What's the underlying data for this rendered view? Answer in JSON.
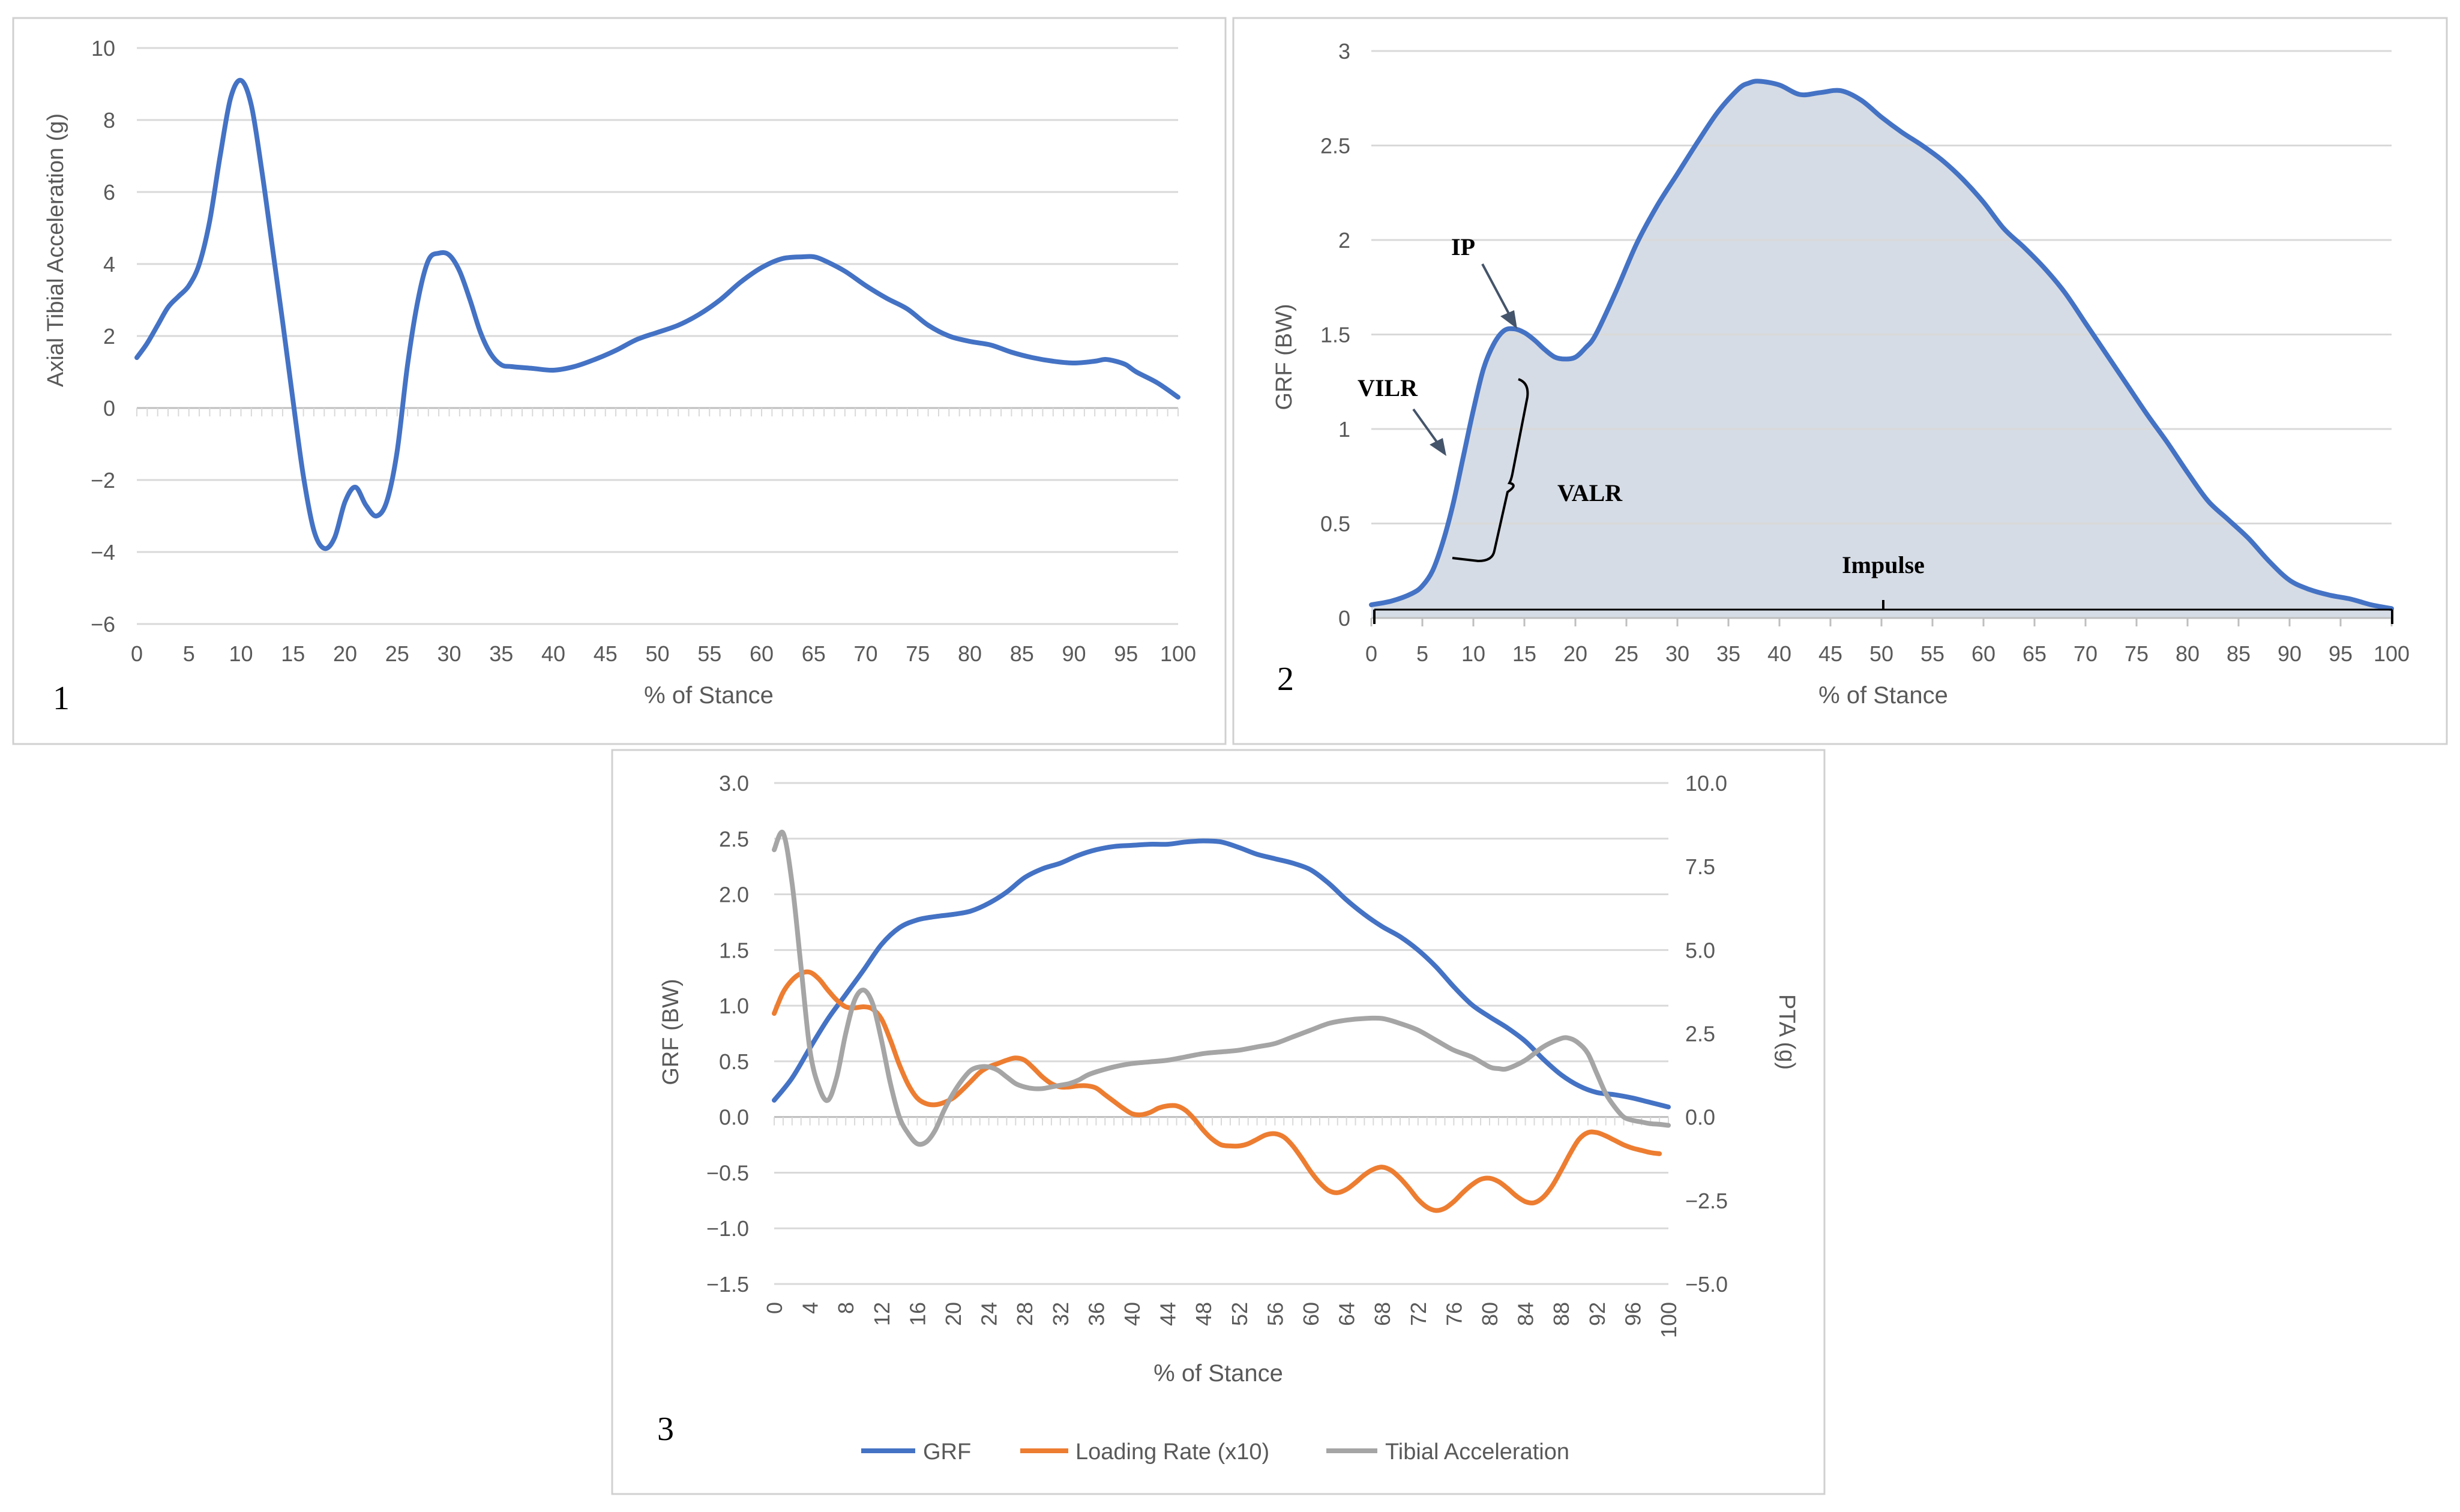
{
  "colors": {
    "grf": "#4472C4",
    "loading_rate": "#ED7D31",
    "tibial_acc": "#A5A5A5",
    "area_fill": "#D6DCE5",
    "grid": "#D9D9D9",
    "axis": "#BFBFBF",
    "panel_border": "#D0D0D0",
    "text": "#595959",
    "annotation": "#000000",
    "arrow": "#44546A"
  },
  "chart_data": [
    {
      "panel_label": "1",
      "type": "line",
      "title": "",
      "xlabel": "% of Stance",
      "ylabel": "Axial Tibial Acceleration (g)",
      "xlim": [
        0,
        100
      ],
      "ylim": [
        -6,
        10
      ],
      "x_ticks": [
        "0",
        "5",
        "10",
        "15",
        "20",
        "25",
        "30",
        "35",
        "40",
        "45",
        "50",
        "55",
        "60",
        "65",
        "70",
        "75",
        "80",
        "85",
        "90",
        "95",
        "100"
      ],
      "y_ticks": [
        "10",
        "8",
        "6",
        "4",
        "2",
        "0",
        "−2",
        "−4",
        "−6"
      ],
      "y_tick_values": [
        10,
        8,
        6,
        4,
        2,
        0,
        -2,
        -4,
        -6
      ],
      "grid": true,
      "series": [
        {
          "name": "Axial Tibial Acceleration",
          "color": "#4472C4",
          "x": [
            0,
            1,
            2,
            3,
            4,
            5,
            6,
            7,
            8,
            9,
            10,
            11,
            12,
            13,
            14,
            15,
            16,
            17,
            18,
            19,
            20,
            21,
            22,
            23,
            24,
            25,
            26,
            27,
            28,
            29,
            30,
            31,
            32,
            33,
            34,
            35,
            36,
            38,
            40,
            42,
            44,
            46,
            48,
            50,
            52,
            54,
            56,
            58,
            60,
            62,
            64,
            65,
            66,
            68,
            70,
            72,
            74,
            76,
            78,
            80,
            82,
            84,
            86,
            88,
            90,
            92,
            93,
            94,
            95,
            96,
            98,
            100
          ],
          "values": [
            1.4,
            1.8,
            2.3,
            2.8,
            3.1,
            3.4,
            4.0,
            5.2,
            7.0,
            8.6,
            9.1,
            8.4,
            6.6,
            4.5,
            2.4,
            0.2,
            -1.9,
            -3.4,
            -3.9,
            -3.6,
            -2.6,
            -2.2,
            -2.7,
            -3.0,
            -2.6,
            -1.2,
            1.2,
            3.0,
            4.1,
            4.3,
            4.25,
            3.8,
            3.0,
            2.1,
            1.5,
            1.2,
            1.15,
            1.1,
            1.05,
            1.15,
            1.35,
            1.6,
            1.9,
            2.1,
            2.3,
            2.6,
            3.0,
            3.5,
            3.9,
            4.15,
            4.2,
            4.2,
            4.1,
            3.8,
            3.4,
            3.05,
            2.75,
            2.3,
            2.0,
            1.85,
            1.75,
            1.55,
            1.4,
            1.3,
            1.25,
            1.3,
            1.35,
            1.3,
            1.2,
            1.0,
            0.7,
            0.3
          ]
        }
      ]
    },
    {
      "panel_label": "2",
      "type": "area",
      "title": "",
      "xlabel": "% of Stance",
      "ylabel": "GRF (BW)",
      "xlim": [
        0,
        100
      ],
      "ylim": [
        0,
        3
      ],
      "x_ticks": [
        "0",
        "5",
        "10",
        "15",
        "20",
        "25",
        "30",
        "35",
        "40",
        "45",
        "50",
        "55",
        "60",
        "65",
        "70",
        "75",
        "80",
        "85",
        "90",
        "95",
        "100"
      ],
      "y_ticks": [
        "3",
        "2.5",
        "2",
        "1.5",
        "1",
        "0.5",
        "0"
      ],
      "y_tick_values": [
        3,
        2.5,
        2,
        1.5,
        1,
        0.5,
        0
      ],
      "grid": true,
      "annotations": [
        "IP",
        "VILR",
        "VALR",
        "Impulse"
      ],
      "series": [
        {
          "name": "GRF",
          "color": "#4472C4",
          "x": [
            0,
            2,
            4,
            5,
            6,
            7,
            8,
            9,
            10,
            11,
            12,
            13,
            14,
            15,
            16,
            17,
            18,
            19,
            20,
            21,
            22,
            24,
            26,
            28,
            30,
            32,
            34,
            36,
            37,
            38,
            40,
            42,
            44,
            46,
            48,
            50,
            52,
            54,
            56,
            58,
            60,
            62,
            64,
            66,
            68,
            70,
            72,
            74,
            76,
            78,
            80,
            82,
            84,
            86,
            88,
            90,
            92,
            94,
            96,
            98,
            100
          ],
          "values": [
            0.07,
            0.09,
            0.13,
            0.17,
            0.25,
            0.4,
            0.6,
            0.85,
            1.1,
            1.32,
            1.45,
            1.52,
            1.53,
            1.51,
            1.47,
            1.42,
            1.38,
            1.37,
            1.38,
            1.43,
            1.5,
            1.73,
            1.98,
            2.18,
            2.35,
            2.52,
            2.68,
            2.8,
            2.83,
            2.84,
            2.82,
            2.77,
            2.78,
            2.79,
            2.74,
            2.65,
            2.57,
            2.5,
            2.42,
            2.32,
            2.2,
            2.06,
            1.96,
            1.85,
            1.72,
            1.56,
            1.4,
            1.24,
            1.08,
            0.93,
            0.77,
            0.62,
            0.52,
            0.42,
            0.3,
            0.2,
            0.15,
            0.12,
            0.1,
            0.07,
            0.05
          ]
        }
      ]
    },
    {
      "panel_label": "3",
      "type": "line",
      "title": "",
      "xlabel": "% of Stance",
      "ylabel": "GRF (BW)",
      "ylabel_right": "PTA (g)",
      "xlim": [
        0,
        100
      ],
      "ylim": [
        -1.5,
        3.0
      ],
      "ylim_right": [
        -5.0,
        10.0
      ],
      "x_ticks": [
        "0",
        "4",
        "8",
        "12",
        "16",
        "20",
        "24",
        "28",
        "32",
        "36",
        "40",
        "44",
        "48",
        "52",
        "56",
        "60",
        "64",
        "68",
        "72",
        "76",
        "80",
        "84",
        "88",
        "92",
        "96",
        "100"
      ],
      "y_ticks": [
        "3.0",
        "2.5",
        "2.0",
        "1.5",
        "1.0",
        "0.5",
        "0.0",
        "−0.5",
        "−1.0",
        "−1.5"
      ],
      "y_tick_values": [
        3.0,
        2.5,
        2.0,
        1.5,
        1.0,
        0.5,
        0.0,
        -0.5,
        -1.0,
        -1.5
      ],
      "y_ticks_right": [
        "10.0",
        "7.5",
        "5.0",
        "2.5",
        "0.0",
        "−2.5",
        "−5.0"
      ],
      "y_tick_values_right": [
        10.0,
        7.5,
        5.0,
        2.5,
        0.0,
        -2.5,
        -5.0
      ],
      "grid": true,
      "legend_position": "bottom",
      "series": [
        {
          "name": "GRF",
          "color": "#4472C4",
          "axis": "left",
          "x": [
            0,
            2,
            4,
            6,
            8,
            10,
            12,
            14,
            16,
            18,
            20,
            22,
            24,
            26,
            28,
            30,
            32,
            34,
            36,
            38,
            40,
            42,
            44,
            46,
            48,
            50,
            52,
            54,
            56,
            58,
            60,
            62,
            64,
            66,
            68,
            70,
            72,
            74,
            76,
            78,
            80,
            82,
            84,
            86,
            88,
            90,
            92,
            94,
            96,
            98,
            100
          ],
          "values": [
            0.15,
            0.35,
            0.62,
            0.88,
            1.1,
            1.32,
            1.55,
            1.7,
            1.77,
            1.8,
            1.82,
            1.85,
            1.92,
            2.02,
            2.15,
            2.23,
            2.28,
            2.35,
            2.4,
            2.43,
            2.44,
            2.45,
            2.45,
            2.47,
            2.48,
            2.47,
            2.42,
            2.36,
            2.32,
            2.28,
            2.22,
            2.1,
            1.95,
            1.82,
            1.71,
            1.62,
            1.5,
            1.35,
            1.17,
            1.01,
            0.9,
            0.8,
            0.68,
            0.52,
            0.38,
            0.28,
            0.22,
            0.2,
            0.17,
            0.13,
            0.09
          ]
        },
        {
          "name": "Loading Rate (x10)",
          "color": "#ED7D31",
          "axis": "left",
          "x": [
            0,
            1,
            2,
            3,
            4,
            5,
            6,
            7,
            8,
            9,
            10,
            11,
            12,
            13,
            14,
            15,
            16,
            17,
            18,
            19,
            20,
            21,
            22,
            23,
            24,
            25,
            26,
            27,
            28,
            29,
            30,
            31,
            32,
            33,
            34,
            35,
            36,
            37,
            38,
            39,
            40,
            41,
            42,
            43,
            44,
            45,
            46,
            47,
            48,
            49,
            50,
            51,
            52,
            53,
            54,
            55,
            56,
            57,
            58,
            59,
            60,
            61,
            62,
            63,
            64,
            65,
            66,
            67,
            68,
            69,
            70,
            71,
            72,
            73,
            74,
            75,
            76,
            77,
            78,
            79,
            80,
            81,
            82,
            83,
            84,
            85,
            86,
            87,
            88,
            89,
            90,
            91,
            92,
            93,
            94,
            95,
            96,
            97,
            98,
            99
          ],
          "values": [
            0.93,
            1.12,
            1.23,
            1.29,
            1.3,
            1.24,
            1.14,
            1.05,
            0.99,
            0.98,
            0.99,
            0.97,
            0.88,
            0.69,
            0.47,
            0.29,
            0.17,
            0.12,
            0.11,
            0.13,
            0.17,
            0.24,
            0.32,
            0.4,
            0.45,
            0.48,
            0.51,
            0.53,
            0.51,
            0.44,
            0.36,
            0.3,
            0.27,
            0.27,
            0.28,
            0.28,
            0.26,
            0.2,
            0.14,
            0.08,
            0.03,
            0.02,
            0.04,
            0.08,
            0.1,
            0.1,
            0.06,
            -0.02,
            -0.12,
            -0.2,
            -0.25,
            -0.26,
            -0.26,
            -0.24,
            -0.2,
            -0.16,
            -0.15,
            -0.18,
            -0.26,
            -0.37,
            -0.49,
            -0.59,
            -0.66,
            -0.68,
            -0.65,
            -0.59,
            -0.52,
            -0.47,
            -0.45,
            -0.48,
            -0.55,
            -0.64,
            -0.74,
            -0.81,
            -0.84,
            -0.82,
            -0.76,
            -0.68,
            -0.61,
            -0.56,
            -0.55,
            -0.58,
            -0.64,
            -0.71,
            -0.76,
            -0.77,
            -0.72,
            -0.62,
            -0.48,
            -0.33,
            -0.2,
            -0.14,
            -0.14,
            -0.17,
            -0.21,
            -0.25,
            -0.28,
            -0.3,
            -0.32,
            -0.33
          ]
        },
        {
          "name": "Tibial Acceleration",
          "color": "#A5A5A5",
          "axis": "right",
          "x": [
            0,
            1,
            2,
            3,
            4,
            5,
            6,
            7,
            8,
            9,
            10,
            11,
            12,
            13,
            14,
            15,
            16,
            17,
            18,
            19,
            20,
            21,
            22,
            23,
            24,
            25,
            26,
            27,
            28,
            29,
            30,
            31,
            32,
            33,
            34,
            35,
            36,
            38,
            40,
            42,
            44,
            46,
            48,
            50,
            52,
            54,
            56,
            58,
            60,
            62,
            64,
            66,
            68,
            70,
            72,
            74,
            76,
            78,
            80,
            81,
            82,
            84,
            86,
            88,
            89,
            90,
            91,
            92,
            93,
            94,
            95,
            96,
            97,
            98,
            99,
            100
          ],
          "values": [
            8.0,
            8.5,
            7.0,
            4.5,
            2.0,
            0.9,
            0.5,
            1.2,
            2.5,
            3.5,
            3.8,
            3.4,
            2.3,
            1.0,
            0.0,
            -0.5,
            -0.8,
            -0.75,
            -0.4,
            0.2,
            0.7,
            1.1,
            1.4,
            1.5,
            1.5,
            1.4,
            1.2,
            1.0,
            0.9,
            0.85,
            0.85,
            0.9,
            0.95,
            1.0,
            1.1,
            1.25,
            1.35,
            1.5,
            1.6,
            1.65,
            1.7,
            1.8,
            1.9,
            1.95,
            2.0,
            2.1,
            2.2,
            2.4,
            2.6,
            2.8,
            2.9,
            2.95,
            2.95,
            2.8,
            2.6,
            2.3,
            2.0,
            1.8,
            1.5,
            1.45,
            1.45,
            1.7,
            2.1,
            2.35,
            2.35,
            2.2,
            1.9,
            1.3,
            0.7,
            0.3,
            0.0,
            -0.1,
            -0.15,
            -0.2,
            -0.22,
            -0.25
          ]
        }
      ]
    }
  ]
}
